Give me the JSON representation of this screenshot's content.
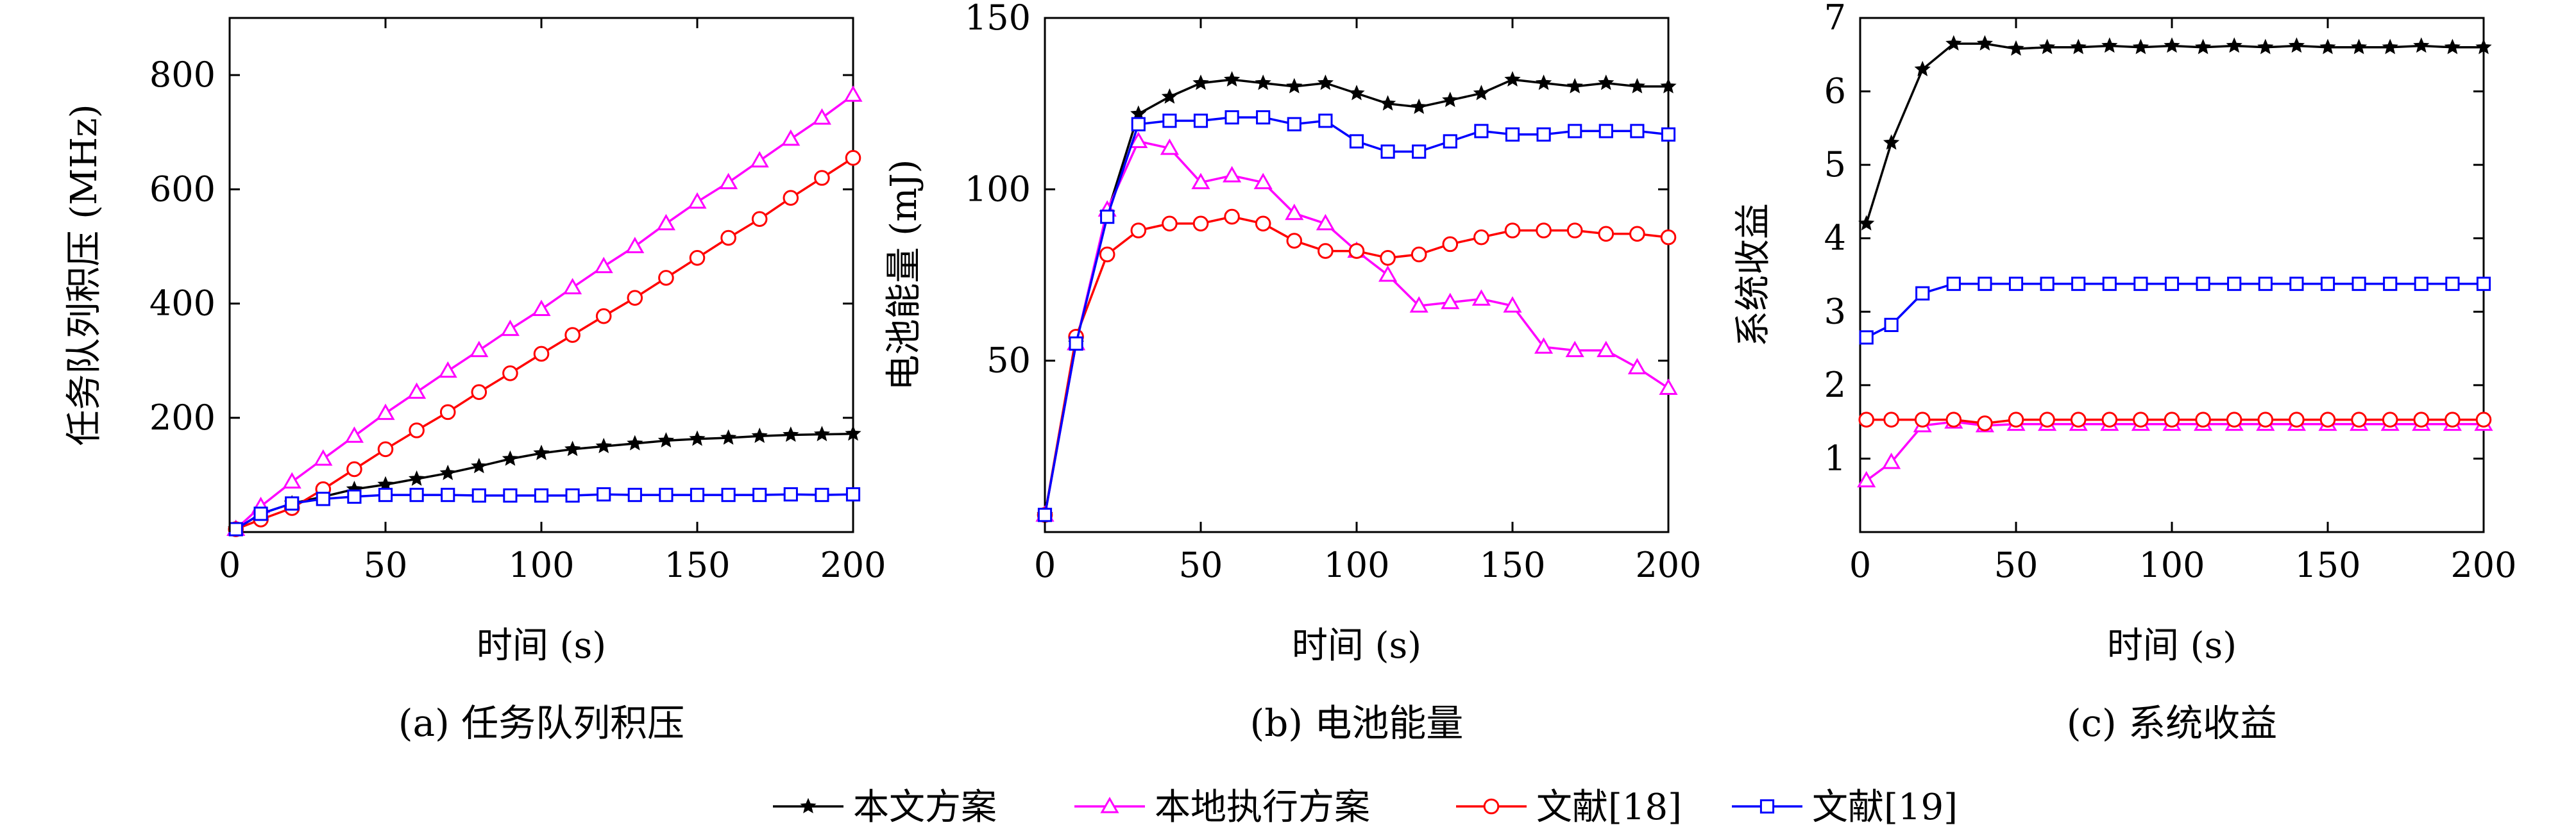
{
  "legend": [
    {
      "label": "本文方案",
      "color": "#000000",
      "marker": "star"
    },
    {
      "label": "本地执行方案",
      "color": "#ff00ff",
      "marker": "triangle"
    },
    {
      "label": "文献[18]",
      "color": "#ff0000",
      "marker": "circle"
    },
    {
      "label": "文献[19]",
      "color": "#0000ff",
      "marker": "square"
    }
  ],
  "chart_data": [
    {
      "type": "line",
      "title": "(a) 任务队列积压",
      "xlabel": "时间 (s)",
      "ylabel": "任务队列积压 (MHz)",
      "xlim": [
        0,
        200
      ],
      "ylim": [
        0,
        900
      ],
      "xticks": [
        0,
        50,
        100,
        150,
        200
      ],
      "yticks": [
        200,
        400,
        600,
        800
      ],
      "series": [
        {
          "name": "本文方案",
          "color": "#000000",
          "marker": "star",
          "x": [
            2,
            10,
            20,
            30,
            40,
            50,
            60,
            70,
            80,
            90,
            100,
            110,
            120,
            130,
            140,
            150,
            160,
            170,
            180,
            190,
            200
          ],
          "y": [
            5,
            32,
            50,
            62,
            75,
            83,
            93,
            103,
            115,
            128,
            138,
            145,
            150,
            155,
            160,
            163,
            165,
            168,
            170,
            171,
            172
          ]
        },
        {
          "name": "本地执行方案",
          "color": "#ff00ff",
          "marker": "triangle",
          "x": [
            2,
            10,
            20,
            30,
            40,
            50,
            60,
            70,
            80,
            90,
            100,
            110,
            120,
            130,
            140,
            150,
            160,
            170,
            180,
            190,
            200
          ],
          "y": [
            5,
            45,
            88,
            128,
            168,
            208,
            245,
            282,
            318,
            355,
            390,
            428,
            465,
            500,
            540,
            578,
            612,
            650,
            688,
            725,
            765
          ]
        },
        {
          "name": "文献[18]",
          "color": "#ff0000",
          "marker": "circle",
          "x": [
            2,
            10,
            20,
            30,
            40,
            50,
            60,
            70,
            80,
            90,
            100,
            110,
            120,
            130,
            140,
            150,
            160,
            170,
            180,
            190,
            200
          ],
          "y": [
            5,
            22,
            42,
            75,
            110,
            145,
            178,
            210,
            245,
            278,
            312,
            345,
            378,
            410,
            445,
            480,
            515,
            548,
            585,
            620,
            655
          ]
        },
        {
          "name": "文献[19]",
          "color": "#0000ff",
          "marker": "square",
          "x": [
            2,
            10,
            20,
            30,
            40,
            50,
            60,
            70,
            80,
            90,
            100,
            110,
            120,
            130,
            140,
            150,
            160,
            170,
            180,
            190,
            200
          ],
          "y": [
            5,
            32,
            50,
            58,
            62,
            65,
            65,
            65,
            64,
            64,
            64,
            64,
            66,
            65,
            65,
            65,
            65,
            65,
            66,
            65,
            66
          ]
        }
      ]
    },
    {
      "type": "line",
      "title": "(b) 电池能量",
      "xlabel": "时间 (s)",
      "ylabel": "电池能量 (mJ)",
      "xlim": [
        0,
        200
      ],
      "ylim": [
        0,
        150
      ],
      "xticks": [
        0,
        50,
        100,
        150,
        200
      ],
      "yticks": [
        50,
        100,
        150
      ],
      "series": [
        {
          "name": "本文方案",
          "color": "#000000",
          "marker": "star",
          "x": [
            0,
            10,
            20,
            30,
            40,
            50,
            60,
            70,
            80,
            90,
            100,
            110,
            120,
            130,
            140,
            150,
            160,
            170,
            180,
            190,
            200
          ],
          "y": [
            5,
            55,
            93,
            122,
            127,
            131,
            132,
            131,
            130,
            131,
            128,
            125,
            124,
            126,
            128,
            132,
            131,
            130,
            131,
            130,
            130
          ]
        },
        {
          "name": "本地执行方案",
          "color": "#ff00ff",
          "marker": "triangle",
          "x": [
            0,
            10,
            20,
            30,
            40,
            50,
            60,
            70,
            80,
            90,
            100,
            110,
            120,
            130,
            140,
            150,
            160,
            170,
            180,
            190,
            200
          ],
          "y": [
            5,
            55,
            94,
            114,
            112,
            102,
            104,
            102,
            93,
            90,
            82,
            75,
            66,
            67,
            68,
            66,
            54,
            53,
            53,
            48,
            42
          ]
        },
        {
          "name": "文献[18]",
          "color": "#ff0000",
          "marker": "circle",
          "x": [
            0,
            10,
            20,
            30,
            40,
            50,
            60,
            70,
            80,
            90,
            100,
            110,
            120,
            130,
            140,
            150,
            160,
            170,
            180,
            190,
            200
          ],
          "y": [
            5,
            57,
            81,
            88,
            90,
            90,
            92,
            90,
            85,
            82,
            82,
            80,
            81,
            84,
            86,
            88,
            88,
            88,
            87,
            87,
            86
          ]
        },
        {
          "name": "文献[19]",
          "color": "#0000ff",
          "marker": "square",
          "x": [
            0,
            10,
            20,
            30,
            40,
            50,
            60,
            70,
            80,
            90,
            100,
            110,
            120,
            130,
            140,
            150,
            160,
            170,
            180,
            190,
            200
          ],
          "y": [
            5,
            55,
            92,
            119,
            120,
            120,
            121,
            121,
            119,
            120,
            114,
            111,
            111,
            114,
            117,
            116,
            116,
            117,
            117,
            117,
            116
          ]
        }
      ]
    },
    {
      "type": "line",
      "title": "(c) 系统收益",
      "xlabel": "时间 (s)",
      "ylabel": "系统收益",
      "xlim": [
        0,
        200
      ],
      "ylim": [
        0,
        7
      ],
      "xticks": [
        0,
        50,
        100,
        150,
        200
      ],
      "yticks": [
        1,
        2,
        3,
        4,
        5,
        6,
        7
      ],
      "series": [
        {
          "name": "本文方案",
          "color": "#000000",
          "marker": "star",
          "x": [
            2,
            10,
            20,
            30,
            40,
            50,
            60,
            70,
            80,
            90,
            100,
            110,
            120,
            130,
            140,
            150,
            160,
            170,
            180,
            190,
            200
          ],
          "y": [
            4.2,
            5.3,
            6.3,
            6.65,
            6.65,
            6.58,
            6.6,
            6.6,
            6.62,
            6.6,
            6.62,
            6.6,
            6.62,
            6.6,
            6.62,
            6.6,
            6.6,
            6.6,
            6.62,
            6.6,
            6.6
          ]
        },
        {
          "name": "本地执行方案",
          "color": "#ff00ff",
          "marker": "triangle",
          "x": [
            2,
            10,
            20,
            30,
            40,
            50,
            60,
            70,
            80,
            90,
            100,
            110,
            120,
            130,
            140,
            150,
            160,
            170,
            180,
            190,
            200
          ],
          "y": [
            0.7,
            0.95,
            1.45,
            1.5,
            1.45,
            1.47,
            1.47,
            1.47,
            1.47,
            1.47,
            1.47,
            1.47,
            1.47,
            1.47,
            1.47,
            1.47,
            1.47,
            1.47,
            1.47,
            1.47,
            1.47
          ]
        },
        {
          "name": "文献[18]",
          "color": "#ff0000",
          "marker": "circle",
          "x": [
            2,
            10,
            20,
            30,
            40,
            50,
            60,
            70,
            80,
            90,
            100,
            110,
            120,
            130,
            140,
            150,
            160,
            170,
            180,
            190,
            200
          ],
          "y": [
            1.53,
            1.53,
            1.53,
            1.53,
            1.48,
            1.53,
            1.53,
            1.53,
            1.53,
            1.53,
            1.53,
            1.53,
            1.53,
            1.53,
            1.53,
            1.53,
            1.53,
            1.53,
            1.53,
            1.53,
            1.53
          ]
        },
        {
          "name": "文献[19]",
          "color": "#0000ff",
          "marker": "square",
          "x": [
            2,
            10,
            20,
            30,
            40,
            50,
            60,
            70,
            80,
            90,
            100,
            110,
            120,
            130,
            140,
            150,
            160,
            170,
            180,
            190,
            200
          ],
          "y": [
            2.65,
            2.82,
            3.25,
            3.38,
            3.38,
            3.38,
            3.38,
            3.38,
            3.38,
            3.38,
            3.38,
            3.38,
            3.38,
            3.38,
            3.38,
            3.38,
            3.38,
            3.38,
            3.38,
            3.38,
            3.38
          ]
        }
      ]
    }
  ]
}
